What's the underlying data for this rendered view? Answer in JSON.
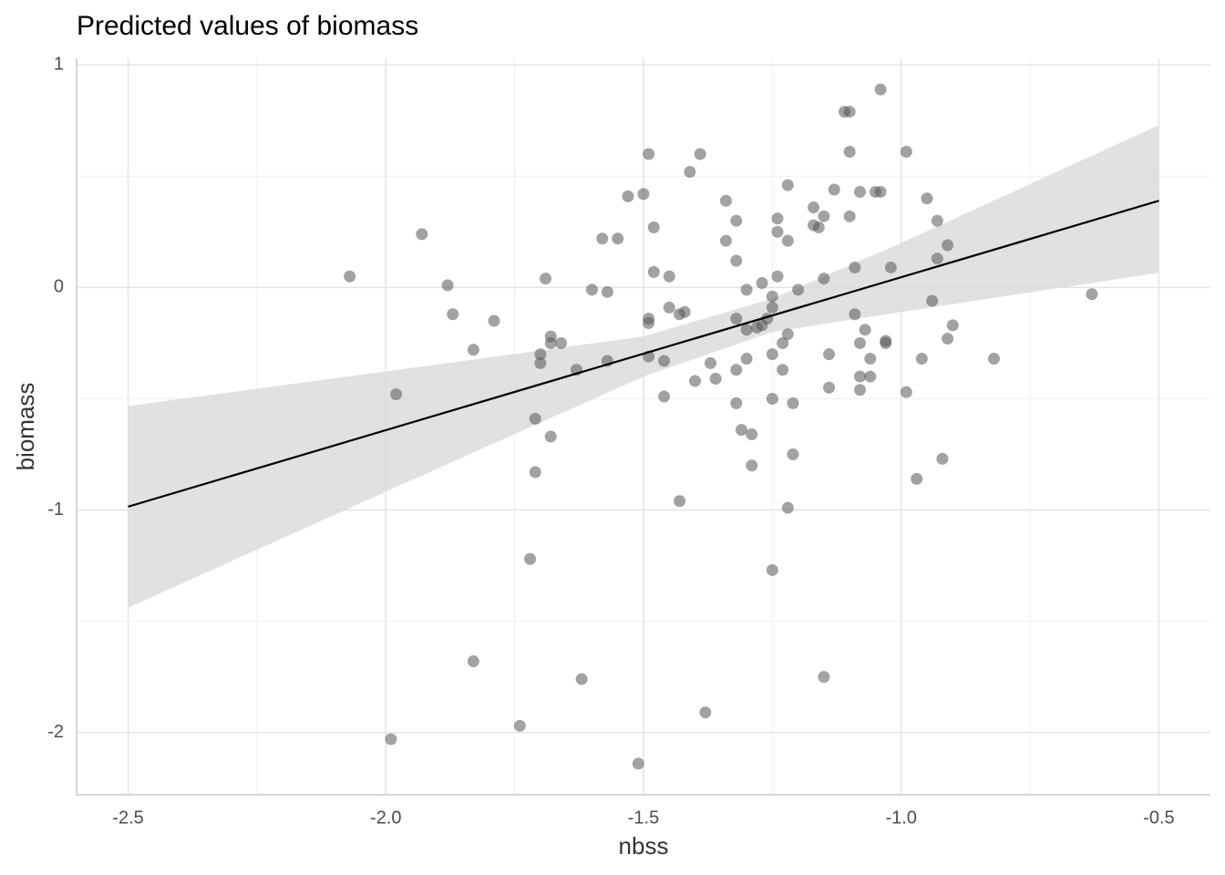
{
  "chart_data": {
    "type": "scatter",
    "title": "Predicted values of biomass",
    "x_label": "nbss",
    "y_label": "biomass",
    "xlim": [
      -2.6,
      -0.4
    ],
    "ylim": [
      -2.28,
      1.03
    ],
    "xticks": [
      -2.5,
      {
        "value": -2,
        "label": "-2.0"
      },
      -1.5,
      {
        "value": -1,
        "label": "-1.0"
      },
      -0.5
    ],
    "yticks": [
      -2,
      -1,
      0,
      1
    ],
    "grid": true,
    "points": {
      "color": "#555555",
      "x": [
        -2.07,
        -1.93,
        -1.98,
        -1.99,
        -1.88,
        -1.87,
        -1.79,
        -1.83,
        -1.83,
        -1.74,
        -1.72,
        -1.71,
        -1.71,
        -1.7,
        -1.7,
        -1.69,
        -1.68,
        -1.68,
        -1.68,
        -1.66,
        -1.63,
        -1.62,
        -1.6,
        -1.58,
        -1.57,
        -1.57,
        -1.55,
        -1.53,
        -1.5,
        -1.49,
        -1.48,
        -1.48,
        -1.49,
        -1.49,
        -1.49,
        -1.51,
        -1.46,
        -1.46,
        -1.45,
        -1.45,
        -1.43,
        -1.43,
        -1.42,
        -1.41,
        -1.4,
        -1.39,
        -1.38,
        -1.37,
        -1.36,
        -1.34,
        -1.34,
        -1.32,
        -1.32,
        -1.32,
        -1.32,
        -1.32,
        -1.31,
        -1.3,
        -1.3,
        -1.3,
        -1.29,
        -1.29,
        -1.28,
        -1.27,
        -1.27,
        -1.26,
        -1.25,
        -1.25,
        -1.25,
        -1.25,
        -1.24,
        -1.25,
        -1.24,
        -1.24,
        -1.23,
        -1.23,
        -1.22,
        -1.22,
        -1.22,
        -1.21,
        -1.21,
        -1.22,
        -1.2,
        -1.17,
        -1.17,
        -1.16,
        -1.15,
        -1.15,
        -1.14,
        -1.15,
        -1.14,
        -1.13,
        -1.11,
        -1.1,
        -1.1,
        -1.1,
        -1.09,
        -1.09,
        -1.08,
        -1.08,
        -1.08,
        -1.08,
        -1.07,
        -1.06,
        -1.06,
        -1.05,
        -1.04,
        -1.04,
        -1.03,
        -1.03,
        -1.02,
        -0.99,
        -0.99,
        -0.97,
        -0.96,
        -0.95,
        -0.94,
        -0.93,
        -0.93,
        -0.92,
        -0.91,
        -0.91,
        -0.9,
        -0.82,
        -0.63
      ],
      "y": [
        0.05,
        0.24,
        -0.48,
        -2.03,
        0.01,
        -0.12,
        -0.15,
        -0.28,
        -1.68,
        -1.97,
        -1.22,
        -0.59,
        -0.83,
        -0.3,
        -0.34,
        0.04,
        -0.22,
        -0.25,
        -0.67,
        -0.25,
        -0.37,
        -1.76,
        -0.01,
        0.22,
        -0.02,
        -0.33,
        0.22,
        0.41,
        0.42,
        0.6,
        0.27,
        0.07,
        -0.14,
        -0.16,
        -0.31,
        -2.14,
        -0.33,
        -0.49,
        0.05,
        -0.09,
        -0.96,
        -0.12,
        -0.11,
        0.52,
        -0.42,
        0.6,
        -1.91,
        -0.34,
        -0.41,
        0.39,
        0.21,
        -0.37,
        0.12,
        0.3,
        -0.14,
        -0.52,
        -0.64,
        -0.19,
        -0.32,
        -0.01,
        -0.8,
        -0.66,
        -0.18,
        -0.17,
        0.02,
        -0.14,
        -0.3,
        -0.5,
        -1.27,
        -0.04,
        0.05,
        -0.09,
        0.31,
        0.25,
        -0.37,
        -0.25,
        0.46,
        0.21,
        -0.21,
        -0.52,
        -0.75,
        -0.99,
        -0.01,
        0.36,
        0.28,
        0.27,
        0.32,
        0.04,
        -0.45,
        -1.75,
        -0.3,
        0.44,
        0.79,
        0.79,
        0.61,
        0.32,
        0.09,
        -0.12,
        -0.25,
        -0.46,
        -0.4,
        0.43,
        -0.19,
        -0.4,
        -0.32,
        0.43,
        0.89,
        0.43,
        -0.24,
        -0.25,
        0.09,
        -0.47,
        0.61,
        -0.86,
        -0.32,
        0.4,
        -0.06,
        0.3,
        0.13,
        -0.77,
        0.19,
        -0.23,
        -0.17,
        -0.32,
        -0.03
      ]
    },
    "fit": {
      "color": "#000000",
      "x": [
        -2.5,
        -0.5
      ],
      "y": [
        -0.985,
        0.39
      ]
    },
    "band": {
      "color": "#d9d9d9",
      "x": [
        -2.5,
        -2.0,
        -1.5,
        -1.25,
        -1.0,
        -0.5
      ],
      "upper": [
        -0.533,
        -0.377,
        -0.22,
        -0.05,
        0.2,
        0.73
      ],
      "lower": [
        -1.439,
        -0.918,
        -0.4,
        -0.2,
        -0.11,
        0.066
      ]
    }
  }
}
